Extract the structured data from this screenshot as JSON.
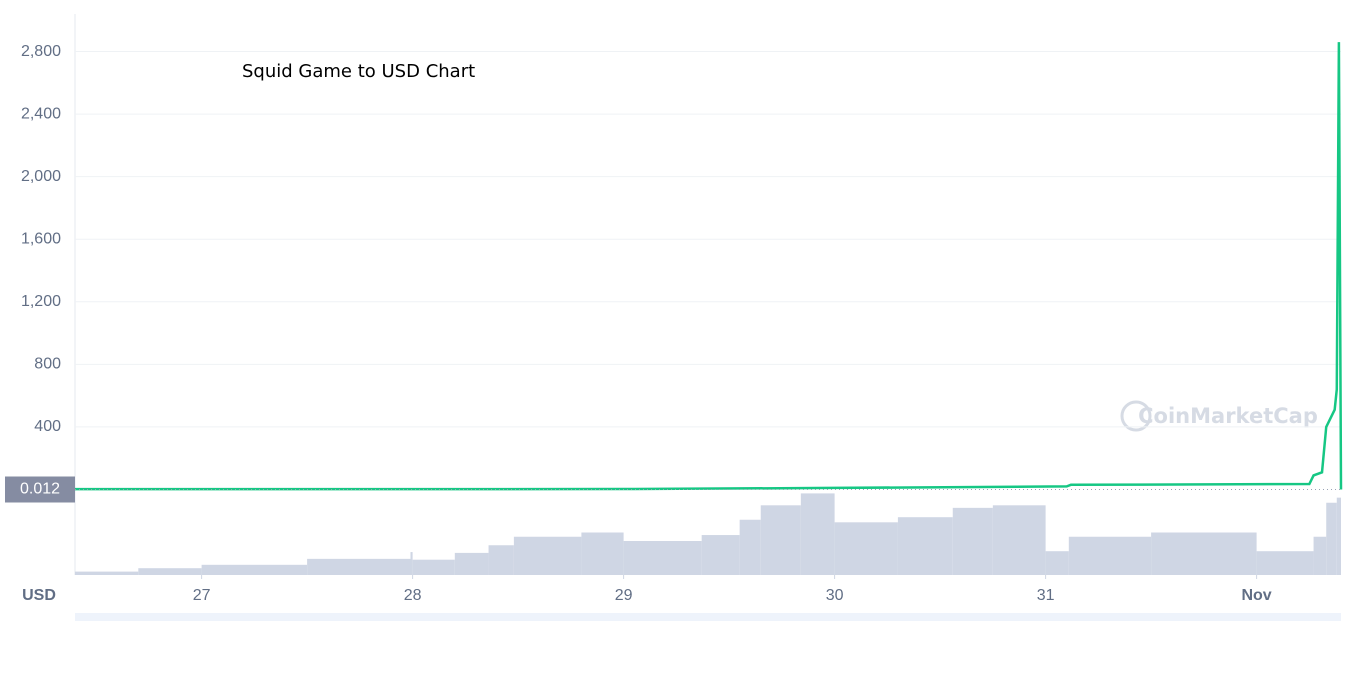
{
  "chart_data": {
    "type": "line",
    "title": "Squid Game to USD Chart",
    "y_axis_label": "USD",
    "current_price": 0.012,
    "watermark": "CoinMarketCap",
    "color": "#16c784",
    "x": [
      26.4,
      29.0,
      30.0,
      31.1,
      31.12,
      32.25,
      32.27,
      32.31,
      32.33,
      32.37,
      32.38,
      32.39,
      32.4
    ],
    "values": [
      2,
      3,
      10,
      20,
      30,
      35,
      90,
      110,
      400,
      510,
      640,
      2860,
      0.012
    ],
    "xlim": [
      26.4,
      32.4
    ],
    "xticks": [
      27,
      28,
      29,
      30,
      31,
      {
        "value": 32,
        "label": "Nov"
      }
    ],
    "ylim": [
      0,
      3040
    ],
    "yticks": [
      400,
      800,
      {
        "value": 1200,
        "label": "1,200"
      },
      {
        "value": 1600,
        "label": "1,600"
      },
      {
        "value": 2000,
        "label": "2,000"
      },
      {
        "value": 2400,
        "label": "2,400"
      },
      {
        "value": 2800,
        "label": "2,800"
      }
    ],
    "grid": true,
    "volume": {
      "color": "#cfd6e4",
      "ylim": [
        0,
        100
      ],
      "x": [
        26.4,
        26.7,
        27.0,
        27.5,
        27.99,
        28.0,
        28.2,
        28.36,
        28.48,
        28.8,
        29.0,
        29.37,
        29.55,
        29.65,
        29.84,
        30.0,
        30.3,
        30.56,
        30.75,
        31.0,
        31.11,
        31.5,
        32.0,
        32.27,
        32.33,
        32.38
      ],
      "values": [
        4,
        8,
        12,
        19,
        27,
        18,
        26,
        35,
        45,
        50,
        40,
        47,
        65,
        82,
        96,
        62,
        68,
        79,
        82,
        28,
        45,
        50,
        28,
        45,
        85,
        91
      ]
    }
  }
}
